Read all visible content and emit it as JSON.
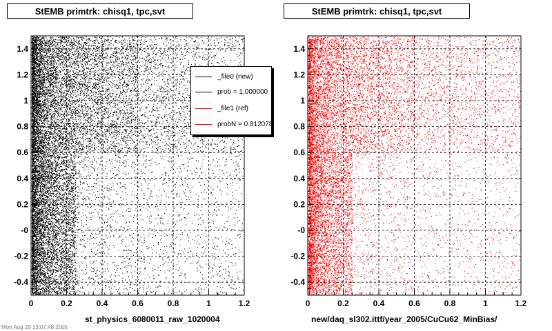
{
  "left_panel": {
    "title": "StEMB primtrk: chisq1, tpc,svt",
    "xcaption": "st_physics_6080011_raw_1020004"
  },
  "right_panel": {
    "title": "StEMB primtrk: chisq1, tpc,svt",
    "xcaption": "new/daq_sl302.ittf/year_2005/CuCu62_MinBias/"
  },
  "legend": {
    "entries": [
      {
        "label": "_file0 (new)",
        "color": "#000000"
      },
      {
        "label": "prob = 1.000000",
        "color": "#000000"
      },
      {
        "label": "_file1 (ref)",
        "color": "#ff0000"
      },
      {
        "label": "probN = 0.812078",
        "color": "#ff0000"
      }
    ]
  },
  "footer_stamp": "Mon Aug 29 13:07:48 2005",
  "chart_data": [
    {
      "type": "scatter",
      "title": "StEMB primtrk: chisq1, tpc,svt",
      "xlabel": "st_physics_6080011_raw_1020004",
      "ylabel": "",
      "xlim": [
        0,
        1.2
      ],
      "ylim": [
        -0.5,
        1.5
      ],
      "xticks": [
        "0",
        "0.2",
        "0.4",
        "0.6",
        "0.8",
        "1",
        "1.2"
      ],
      "yticks": [
        "-0.4",
        "-0.2",
        "-0",
        "0.2",
        "0.4",
        "0.6",
        "0.8",
        "1",
        "1.2",
        "1.4"
      ],
      "grid": true,
      "series": [
        {
          "name": "_file0 (new)",
          "color": "#000000",
          "description_density": "very dense near x=0, dense band y>0.6, sparse at larger x for y<0.6"
        }
      ]
    },
    {
      "type": "scatter",
      "title": "StEMB primtrk: chisq1, tpc,svt",
      "xlabel": "new/daq_sl302.ittf/year_2005/CuCu62_MinBias/",
      "ylabel": "",
      "xlim": [
        0,
        1.2
      ],
      "ylim": [
        -0.5,
        1.5
      ],
      "xticks": [
        "0",
        "0.2",
        "0.4",
        "0.6",
        "0.8",
        "1",
        "1.2"
      ],
      "yticks": [
        "-0.4",
        "-0.2",
        "-0",
        "0.2",
        "0.4",
        "0.6",
        "0.8",
        "1",
        "1.2",
        "1.4"
      ],
      "grid": true,
      "series": [
        {
          "name": "_file1 (ref)",
          "color": "#ff0000",
          "description_density": "very dense near x=0, dense band y>0.6, sparse at larger x for y<0.6"
        }
      ]
    }
  ]
}
